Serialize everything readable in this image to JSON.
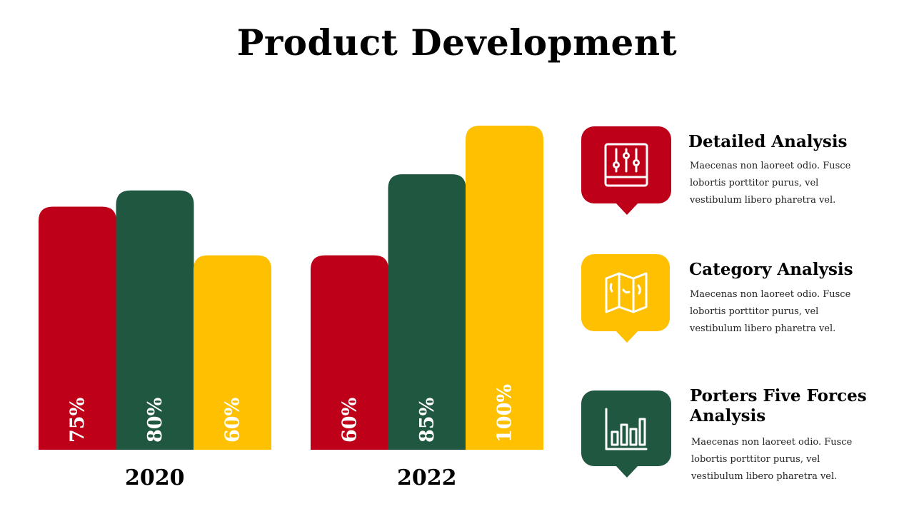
{
  "title": "Product Development",
  "chart_data": {
    "type": "bar",
    "categories": [
      "2020",
      "2022"
    ],
    "series": [
      {
        "values": [
          75,
          60
        ],
        "color": "#BE0019"
      },
      {
        "values": [
          80,
          85
        ],
        "color": "#205741"
      },
      {
        "values": [
          60,
          100
        ],
        "color": "#FEC000"
      }
    ],
    "data_labels": [
      [
        "75%",
        "60%"
      ],
      [
        "80%",
        "85%"
      ],
      [
        "60%",
        "100%"
      ]
    ],
    "value_suffix": "%",
    "ylim": [
      0,
      100
    ],
    "grid": false,
    "legend": "none"
  },
  "features": [
    {
      "title": "Detailed Analysis",
      "description": "Maecenas non laoreet odio. Fusce lobortis porttitor purus, vel vestibulum libero pharetra vel.",
      "icon": "sliders-icon",
      "color": "#BE0019"
    },
    {
      "title": "Category Analysis",
      "description": "Maecenas non laoreet odio. Fusce lobortis porttitor purus, vel vestibulum libero pharetra vel.",
      "icon": "map-icon",
      "color": "#FEC000"
    },
    {
      "title": "Porters Five Forces Analysis",
      "description": "Maecenas non laoreet odio. Fusce lobortis porttitor purus, vel vestibulum libero pharetra vel.",
      "icon": "bar-chart-icon",
      "color": "#205741"
    }
  ]
}
